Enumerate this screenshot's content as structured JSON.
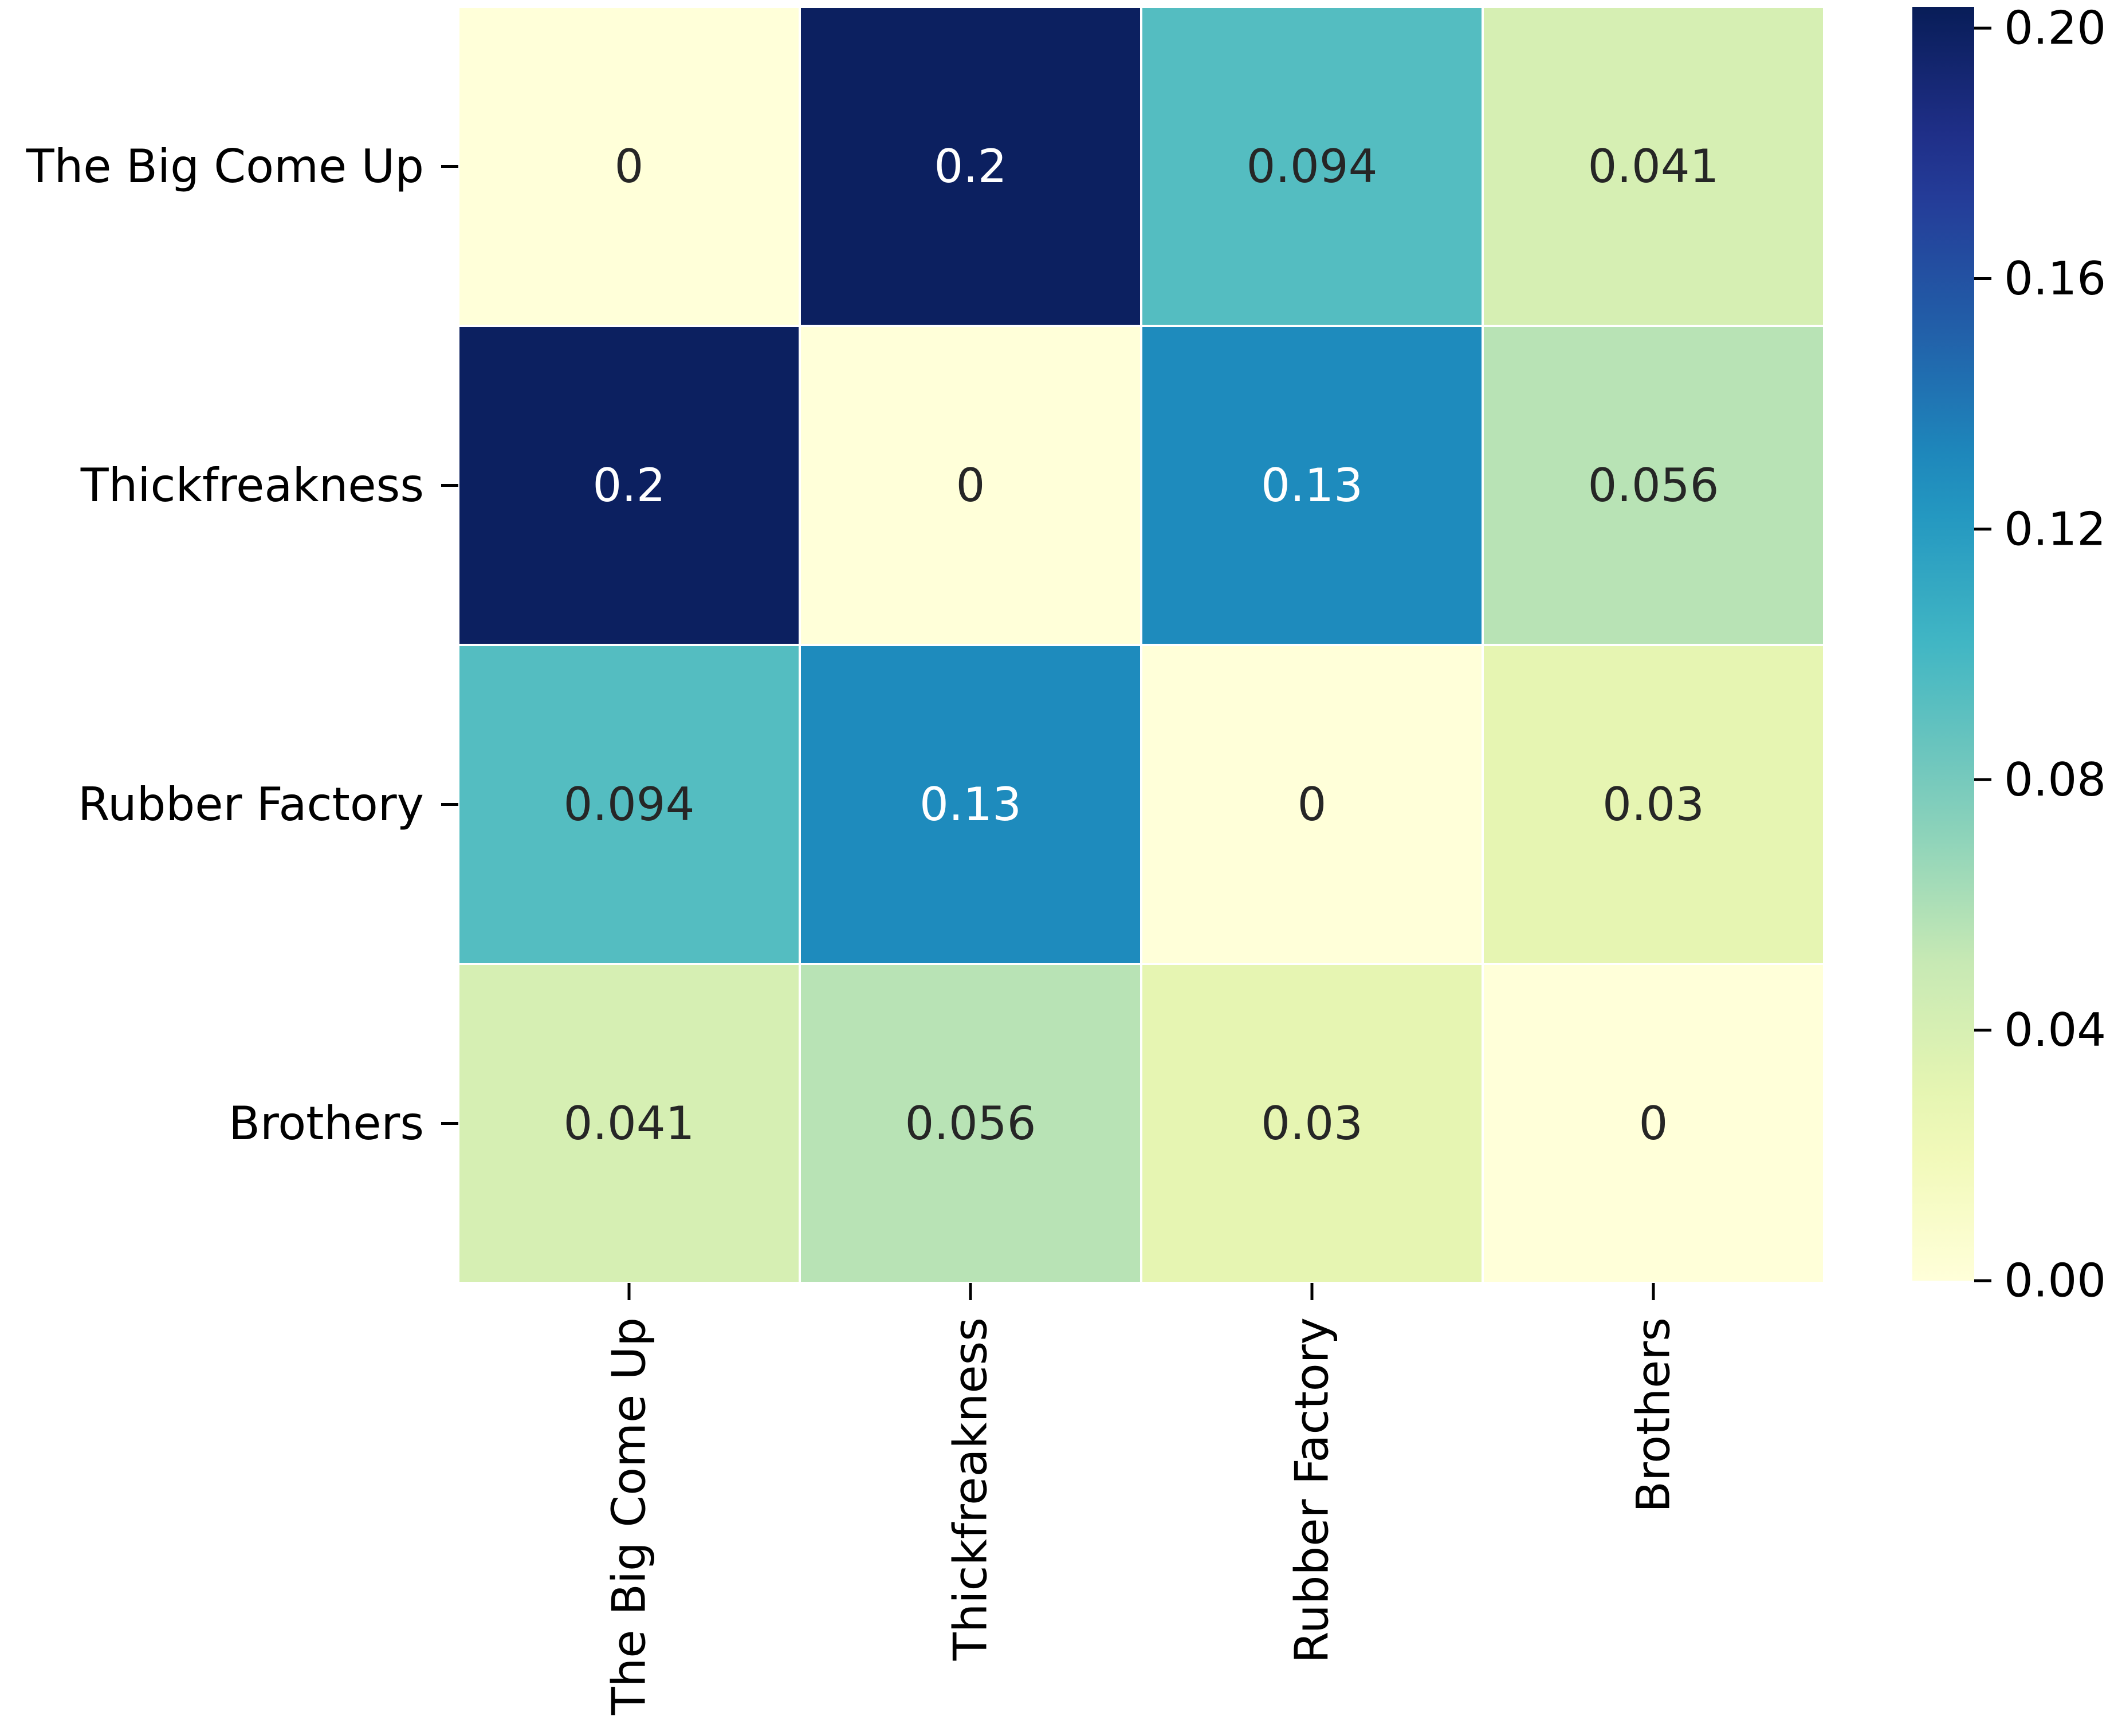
{
  "chart_data": {
    "type": "heatmap",
    "title": "",
    "xlabel": "",
    "ylabel": "",
    "x_categories": [
      "The Big Come Up",
      "Thickfreakness",
      "Rubber Factory",
      "Brothers"
    ],
    "y_categories": [
      "The Big Come Up",
      "Thickfreakness",
      "Rubber Factory",
      "Brothers"
    ],
    "values": [
      [
        0,
        0.2,
        0.094,
        0.041
      ],
      [
        0.2,
        0,
        0.13,
        0.056
      ],
      [
        0.094,
        0.13,
        0,
        0.03
      ],
      [
        0.041,
        0.056,
        0.03,
        0
      ]
    ],
    "annotations": [
      [
        "0",
        "0.2",
        "0.094",
        "0.041"
      ],
      [
        "0.2",
        "0",
        "0.13",
        "0.056"
      ],
      [
        "0.094",
        "0.13",
        "0",
        "0.03"
      ],
      [
        "0.041",
        "0.056",
        "0.03",
        "0"
      ]
    ],
    "colormap": "YlGnBu",
    "vmin": 0,
    "vmax": 0.2034,
    "colorbar": {
      "ticks": [
        0.0,
        0.04,
        0.08,
        0.12,
        0.16,
        0.2
      ],
      "tick_labels": [
        "0.00",
        "0.04",
        "0.08",
        "0.12",
        "0.16",
        "0.20"
      ]
    },
    "grid": false,
    "cell_border_color": "#ffffff"
  }
}
